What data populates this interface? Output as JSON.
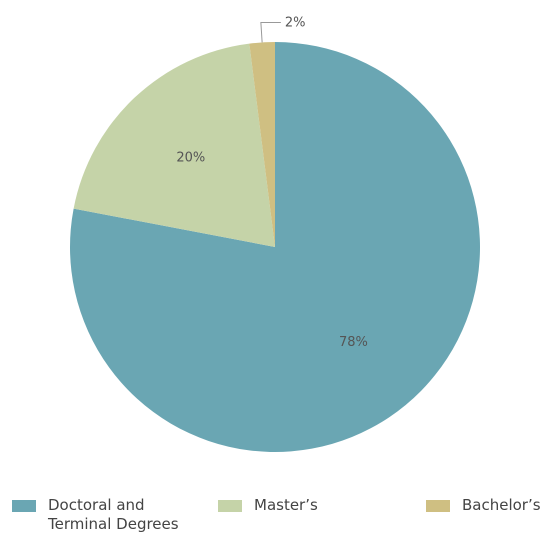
{
  "chart_data": {
    "type": "pie",
    "slices": [
      {
        "name": "Doctoral and\nTerminal Degrees",
        "value": 78,
        "label": "78%",
        "color": "#6aa6b3"
      },
      {
        "name": "Master’s",
        "value": 20,
        "label": "20%",
        "color": "#c5d3a8"
      },
      {
        "name": "Bachelor’s",
        "value": 2,
        "label": "2%",
        "color": "#cfbf82"
      }
    ],
    "start": "12 o'clock",
    "direction": "clockwise",
    "legend_position": "bottom"
  }
}
